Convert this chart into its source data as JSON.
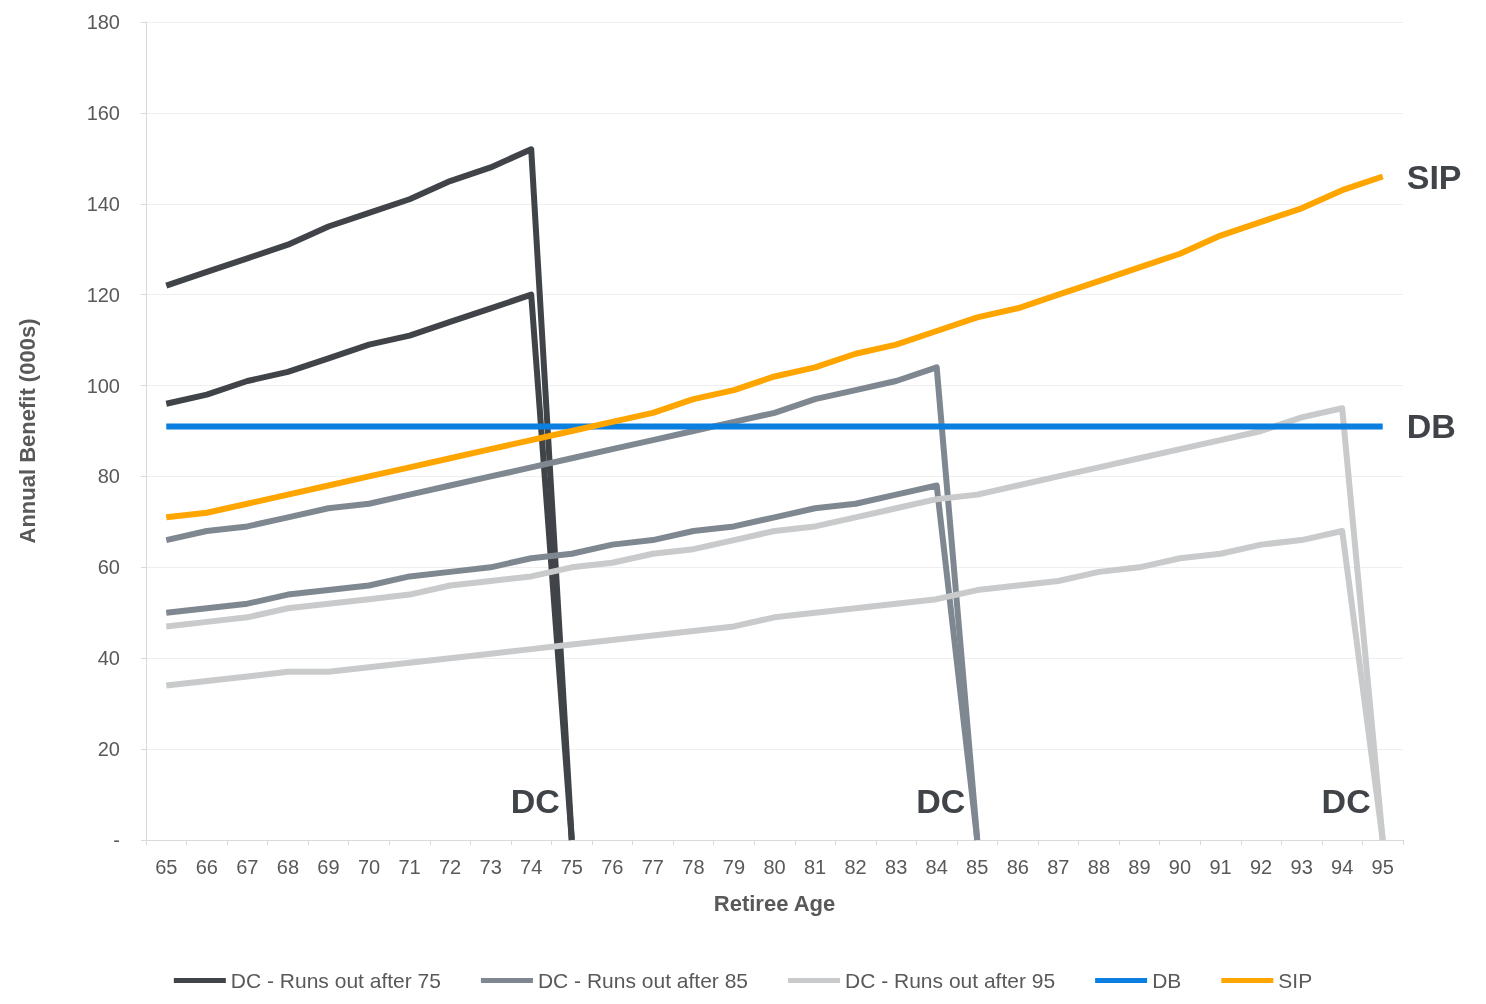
{
  "chart_data": {
    "type": "line",
    "xlabel": "Retiree Age",
    "ylabel": "Annual Benefit (000s)",
    "categories": [
      "65",
      "66",
      "67",
      "68",
      "69",
      "70",
      "71",
      "72",
      "73",
      "74",
      "75",
      "76",
      "77",
      "78",
      "79",
      "80",
      "81",
      "82",
      "83",
      "84",
      "85",
      "86",
      "87",
      "88",
      "89",
      "90",
      "91",
      "92",
      "93",
      "94",
      "95"
    ],
    "series": [
      {
        "name": "DC - Runs out after 75",
        "color": "#404448",
        "values": [
          122,
          125,
          128,
          131,
          135,
          138,
          141,
          145,
          148,
          152,
          0,
          null,
          null,
          null,
          null,
          null,
          null,
          null,
          null,
          null,
          null,
          null,
          null,
          null,
          null,
          null,
          null,
          null,
          null,
          null,
          null
        ]
      },
      {
        "color": "#404448",
        "values": [
          96,
          98,
          101,
          103,
          106,
          109,
          111,
          114,
          117,
          120,
          0,
          null,
          null,
          null,
          null,
          null,
          null,
          null,
          null,
          null,
          null,
          null,
          null,
          null,
          null,
          null,
          null,
          null,
          null,
          null,
          null
        ]
      },
      {
        "name": "DC - Runs out after 85",
        "color": "#7f8891",
        "values": [
          66,
          68,
          69,
          71,
          73,
          74,
          76,
          78,
          80,
          82,
          84,
          86,
          88,
          90,
          92,
          94,
          97,
          99,
          101,
          104,
          0,
          null,
          null,
          null,
          null,
          null,
          null,
          null,
          null,
          null,
          null
        ]
      },
      {
        "color": "#7f8891",
        "values": [
          50,
          51,
          52,
          54,
          55,
          56,
          58,
          59,
          60,
          62,
          63,
          65,
          66,
          68,
          69,
          71,
          73,
          74,
          76,
          78,
          0,
          null,
          null,
          null,
          null,
          null,
          null,
          null,
          null,
          null,
          null
        ]
      },
      {
        "name": "DC - Runs out after 95",
        "color": "#c8cacb",
        "values": [
          47,
          48,
          49,
          51,
          52,
          53,
          54,
          56,
          57,
          58,
          60,
          61,
          63,
          64,
          66,
          68,
          69,
          71,
          73,
          75,
          76,
          78,
          80,
          82,
          84,
          86,
          88,
          90,
          93,
          95,
          0
        ]
      },
      {
        "color": "#c8cacb",
        "values": [
          34,
          35,
          36,
          37,
          37,
          38,
          39,
          40,
          41,
          42,
          43,
          44,
          45,
          46,
          47,
          49,
          50,
          51,
          52,
          53,
          55,
          56,
          57,
          59,
          60,
          62,
          63,
          65,
          66,
          68,
          0
        ]
      },
      {
        "name": "DB",
        "color": "#0a7fe0",
        "values": [
          91,
          91,
          91,
          91,
          91,
          91,
          91,
          91,
          91,
          91,
          91,
          91,
          91,
          91,
          91,
          91,
          91,
          91,
          91,
          91,
          91,
          91,
          91,
          91,
          91,
          91,
          91,
          91,
          91,
          91,
          91
        ]
      },
      {
        "name": "SIP",
        "color": "#ffa500",
        "values": [
          71,
          72,
          74,
          76,
          78,
          80,
          82,
          84,
          86,
          88,
          90,
          92,
          94,
          97,
          99,
          102,
          104,
          107,
          109,
          112,
          115,
          117,
          120,
          123,
          126,
          129,
          133,
          136,
          139,
          143,
          146
        ]
      }
    ],
    "ylim": [
      0,
      180
    ],
    "yticks": [
      {
        "value": 0,
        "label": "-"
      },
      20,
      40,
      60,
      80,
      100,
      120,
      140,
      160,
      180
    ],
    "grid": "y",
    "legend": "bottom",
    "marker": "none",
    "line_style": "solid",
    "annotations": [
      {
        "text": "SIP",
        "x": "95",
        "y": 146
      },
      {
        "text": "DB",
        "x": "95",
        "y": 91
      },
      {
        "text": "DC",
        "x": "75",
        "y": 0
      },
      {
        "text": "DC",
        "x": "85",
        "y": 0
      },
      {
        "text": "DC",
        "x": "95",
        "y": 0
      }
    ]
  }
}
